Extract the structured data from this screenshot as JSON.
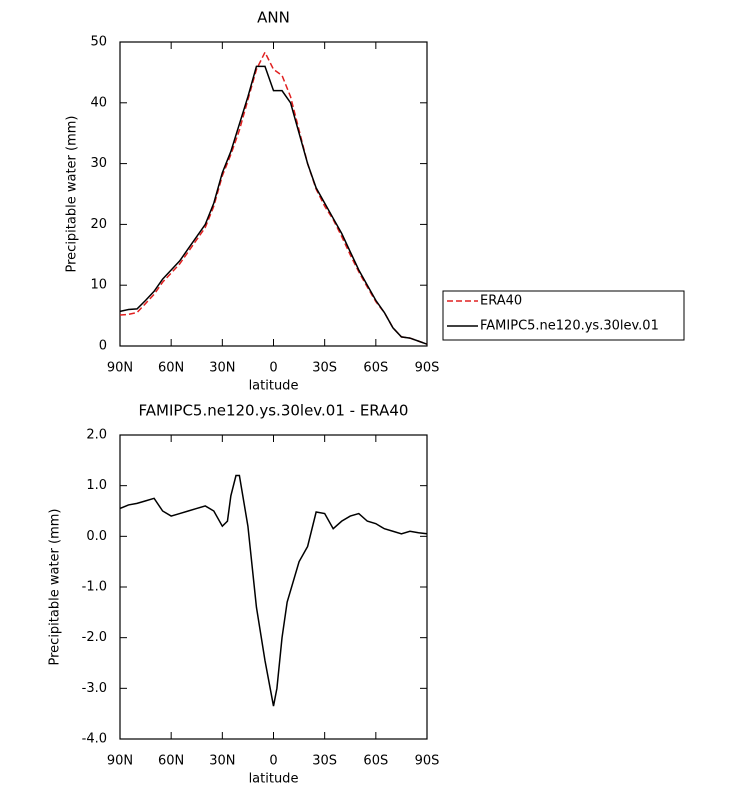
{
  "chart_data": [
    {
      "type": "line",
      "title": "ANN",
      "x_label": "latitude",
      "y_label": "Precipitable water (mm)",
      "x": [
        90,
        85,
        80,
        75,
        70,
        65,
        60,
        55,
        50,
        45,
        40,
        35,
        30,
        25,
        20,
        15,
        10,
        5,
        0,
        -5,
        -10,
        -15,
        -20,
        -25,
        -30,
        -35,
        -40,
        -45,
        -50,
        -55,
        -60,
        -65,
        -70,
        -75,
        -80,
        -85,
        -90
      ],
      "series": [
        {
          "name": "ERA40",
          "color": "#e02020",
          "dash": true,
          "values": [
            5.1,
            5.2,
            5.5,
            7,
            8.5,
            10.5,
            12,
            13.5,
            15.5,
            17.5,
            19.5,
            23,
            28,
            31.5,
            35.5,
            40.5,
            45.5,
            48.3,
            45.5,
            44.5,
            41,
            35.5,
            30,
            25.8,
            23,
            20.8,
            18,
            15,
            12.2,
            9.7,
            7.3,
            5.5,
            3,
            1.5,
            1.3,
            0.8,
            0.3
          ]
        },
        {
          "name": "FAMIPC5.ne120.ys.30lev.01",
          "color": "#000000",
          "dash": false,
          "values": [
            5.7,
            6,
            6.1,
            7.5,
            9,
            11,
            12.5,
            14,
            16,
            18,
            20,
            23.5,
            28.5,
            32,
            36.5,
            41,
            46,
            46,
            42,
            42,
            40,
            35,
            30,
            26,
            23.5,
            21,
            18.5,
            15.5,
            12.5,
            10,
            7.5,
            5.5,
            3,
            1.5,
            1.3,
            0.8,
            0.3
          ]
        }
      ],
      "xlim": [
        90,
        -90
      ],
      "xticks": [
        {
          "value": 90,
          "label": "90N"
        },
        {
          "value": 60,
          "label": "60N"
        },
        {
          "value": 30,
          "label": "30N"
        },
        0,
        {
          "value": -30,
          "label": "30S"
        },
        {
          "value": -60,
          "label": "60S"
        },
        {
          "value": -90,
          "label": "90S"
        }
      ],
      "ylim": [
        0,
        50
      ],
      "yticks": [
        0,
        10,
        20,
        30,
        40,
        50
      ],
      "legend": "right"
    },
    {
      "type": "line",
      "title": "FAMIPC5.ne120.ys.30lev.01 - ERA40",
      "x_label": "latitude",
      "y_label": "Precipitable water (mm)",
      "x": [
        90,
        85,
        80,
        75,
        70,
        65,
        60,
        55,
        50,
        45,
        40,
        35,
        30,
        27,
        25,
        22,
        20,
        15,
        10,
        5,
        0,
        -2,
        -5,
        -8,
        -15,
        -20,
        -25,
        -30,
        -35,
        -40,
        -45,
        -50,
        -55,
        -60,
        -65,
        -70,
        -75,
        -80,
        -85,
        -90
      ],
      "series": [
        {
          "color": "#000000",
          "dash": false,
          "values": [
            0.55,
            0.62,
            0.65,
            0.7,
            0.75,
            0.5,
            0.4,
            0.45,
            0.5,
            0.55,
            0.6,
            0.5,
            0.2,
            0.3,
            0.8,
            1.2,
            1.2,
            0.2,
            -1.4,
            -2.45,
            -3.35,
            -3.0,
            -2.0,
            -1.3,
            -0.5,
            -0.2,
            0.48,
            0.45,
            0.15,
            0.3,
            0.4,
            0.45,
            0.3,
            0.25,
            0.15,
            0.1,
            0.05,
            0.1,
            0.07,
            0.05
          ]
        }
      ],
      "xlim": [
        90,
        -90
      ],
      "xticks": [
        {
          "value": 90,
          "label": "90N"
        },
        {
          "value": 60,
          "label": "60N"
        },
        {
          "value": 30,
          "label": "30N"
        },
        0,
        {
          "value": -30,
          "label": "30S"
        },
        {
          "value": -60,
          "label": "60S"
        },
        {
          "value": -90,
          "label": "90S"
        }
      ],
      "ylim": [
        -4,
        2
      ],
      "yticks": [
        {
          "value": -4,
          "label": "-4.0"
        },
        {
          "value": -3,
          "label": "-3.0"
        },
        {
          "value": -2,
          "label": "-2.0"
        },
        {
          "value": -1,
          "label": "-1.0"
        },
        {
          "value": 0,
          "label": "0.0"
        },
        {
          "value": 1,
          "label": "1.0"
        },
        {
          "value": 2,
          "label": "2.0"
        }
      ]
    }
  ]
}
